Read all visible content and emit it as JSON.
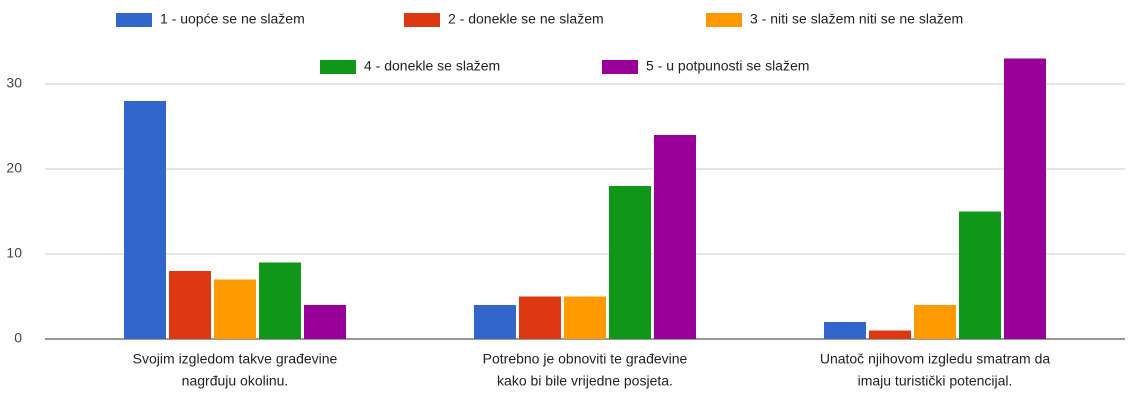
{
  "chart_data": {
    "type": "bar",
    "categories": [
      [
        "Svojim izgledom takve građevine",
        "nagrđuju okolinu."
      ],
      [
        "Potrebno je obnoviti te građevine",
        "kako bi bile vrijedne posjeta."
      ],
      [
        "Unatoč njihovom izgledu smatram da",
        "imaju turistički potencijal."
      ]
    ],
    "series": [
      {
        "name": "1 - uopće se ne slažem",
        "color": "#3366cc",
        "values": [
          28,
          4,
          2
        ]
      },
      {
        "name": "2 - donekle se ne slažem",
        "color": "#dc3912",
        "values": [
          8,
          5,
          1
        ]
      },
      {
        "name": "3 - niti se slažem niti se ne slažem",
        "color": "#ff9900",
        "values": [
          7,
          5,
          4
        ]
      },
      {
        "name": "4 - donekle se slažem",
        "color": "#109618",
        "values": [
          9,
          18,
          15
        ]
      },
      {
        "name": "5 - u potpunosti se slažem",
        "color": "#990099",
        "values": [
          4,
          24,
          33
        ]
      }
    ],
    "ylim": [
      0,
      30
    ],
    "yticks": [
      0,
      10,
      20,
      30
    ],
    "grid": true,
    "legend": "top"
  }
}
